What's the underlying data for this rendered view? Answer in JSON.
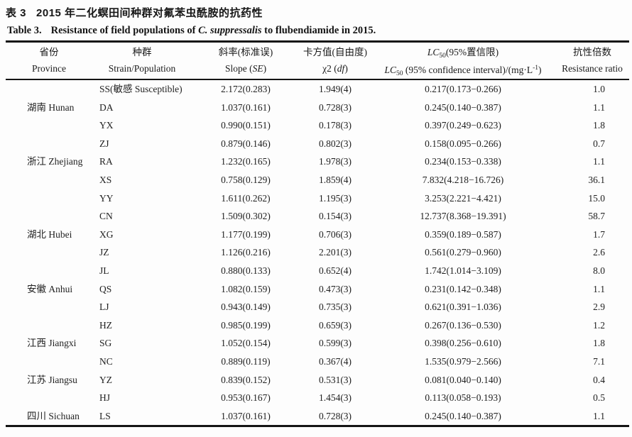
{
  "page": {
    "title_zh_label": "表 3",
    "title_zh_text": "2015 年二化螟田间种群对氟苯虫酰胺的抗药性",
    "title_en_label": "Table 3.",
    "title_en_before": "Resistance of field populations of ",
    "title_en_species": "C. suppressalis",
    "title_en_after": " to flubendiamide in 2015."
  },
  "table": {
    "headers": {
      "province_zh": "省份",
      "province_en": "Province",
      "strain_zh": "种群",
      "strain_en": "Strain/Population",
      "slope_zh": "斜率(标准误)",
      "slope_en_prefix": "Slope (",
      "slope_en_italic": "SE",
      "slope_en_suffix": ")",
      "chi_zh": "卡方值(自由度)",
      "chi_en_prefix": "χ2 (",
      "chi_en_italic": "df",
      "chi_en_suffix": ")",
      "lc50_italic": "LC",
      "lc50_sub": "50",
      "lc50_zh_rest": "(95%置信限)",
      "lc50_en_mid": " (95% confidence interval)/(mg·L",
      "lc50_en_sup": "-1",
      "lc50_en_end": ")",
      "rr_zh": "抗性倍数",
      "rr_en": "Resistance ratio"
    },
    "rows": [
      {
        "province": "",
        "strain": "SS(敏感 Susceptible)",
        "slope": "2.172(0.283)",
        "chi2": "1.949(4)",
        "lc50": "0.217(0.173−0.266)",
        "rr": "1.0"
      },
      {
        "province": "湖南 Hunan",
        "strain": "DA",
        "slope": "1.037(0.161)",
        "chi2": "0.728(3)",
        "lc50": "0.245(0.140−0.387)",
        "rr": "1.1"
      },
      {
        "province": "",
        "strain": "YX",
        "slope": "0.990(0.151)",
        "chi2": "0.178(3)",
        "lc50": "0.397(0.249−0.623)",
        "rr": "1.8"
      },
      {
        "province": "",
        "strain": "ZJ",
        "slope": "0.879(0.146)",
        "chi2": "0.802(3)",
        "lc50": "0.158(0.095−0.266)",
        "rr": "0.7"
      },
      {
        "province": "浙江 Zhejiang",
        "strain": "RA",
        "slope": "1.232(0.165)",
        "chi2": "1.978(3)",
        "lc50": "0.234(0.153−0.338)",
        "rr": "1.1"
      },
      {
        "province": "",
        "strain": "XS",
        "slope": "0.758(0.129)",
        "chi2": "1.859(4)",
        "lc50": "7.832(4.218−16.726)",
        "rr": "36.1"
      },
      {
        "province": "",
        "strain": "YY",
        "slope": "1.611(0.262)",
        "chi2": "1.195(3)",
        "lc50": "3.253(2.221−4.421)",
        "rr": "15.0"
      },
      {
        "province": "",
        "strain": "CN",
        "slope": "1.509(0.302)",
        "chi2": "0.154(3)",
        "lc50": "12.737(8.368−19.391)",
        "rr": "58.7"
      },
      {
        "province": "湖北 Hubei",
        "strain": "XG",
        "slope": "1.177(0.199)",
        "chi2": "0.706(3)",
        "lc50": "0.359(0.189−0.587)",
        "rr": "1.7"
      },
      {
        "province": "",
        "strain": "JZ",
        "slope": "1.126(0.216)",
        "chi2": "2.201(3)",
        "lc50": "0.561(0.279−0.960)",
        "rr": "2.6"
      },
      {
        "province": "",
        "strain": "JL",
        "slope": "0.880(0.133)",
        "chi2": "0.652(4)",
        "lc50": "1.742(1.014−3.109)",
        "rr": "8.0"
      },
      {
        "province": "安徽 Anhui",
        "strain": "QS",
        "slope": "1.082(0.159)",
        "chi2": "0.473(3)",
        "lc50": "0.231(0.142−0.348)",
        "rr": "1.1"
      },
      {
        "province": "",
        "strain": "LJ",
        "slope": "0.943(0.149)",
        "chi2": "0.735(3)",
        "lc50": "0.621(0.391−1.036)",
        "rr": "2.9"
      },
      {
        "province": "",
        "strain": "HZ",
        "slope": "0.985(0.199)",
        "chi2": "0.659(3)",
        "lc50": "0.267(0.136−0.530)",
        "rr": "1.2"
      },
      {
        "province": "江西 Jiangxi",
        "strain": "SG",
        "slope": "1.052(0.154)",
        "chi2": "0.599(3)",
        "lc50": "0.398(0.256−0.610)",
        "rr": "1.8"
      },
      {
        "province": "",
        "strain": "NC",
        "slope": "0.889(0.119)",
        "chi2": "0.367(4)",
        "lc50": "1.535(0.979−2.566)",
        "rr": "7.1"
      },
      {
        "province": "江苏 Jiangsu",
        "strain": "YZ",
        "slope": "0.839(0.152)",
        "chi2": "0.531(3)",
        "lc50": "0.081(0.040−0.140)",
        "rr": "0.4"
      },
      {
        "province": "",
        "strain": "HJ",
        "slope": "0.953(0.167)",
        "chi2": "1.454(3)",
        "lc50": "0.113(0.058−0.193)",
        "rr": "0.5"
      },
      {
        "province": "四川 Sichuan",
        "strain": "LS",
        "slope": "1.037(0.161)",
        "chi2": "0.728(3)",
        "lc50": "0.245(0.140−0.387)",
        "rr": "1.1"
      }
    ]
  }
}
